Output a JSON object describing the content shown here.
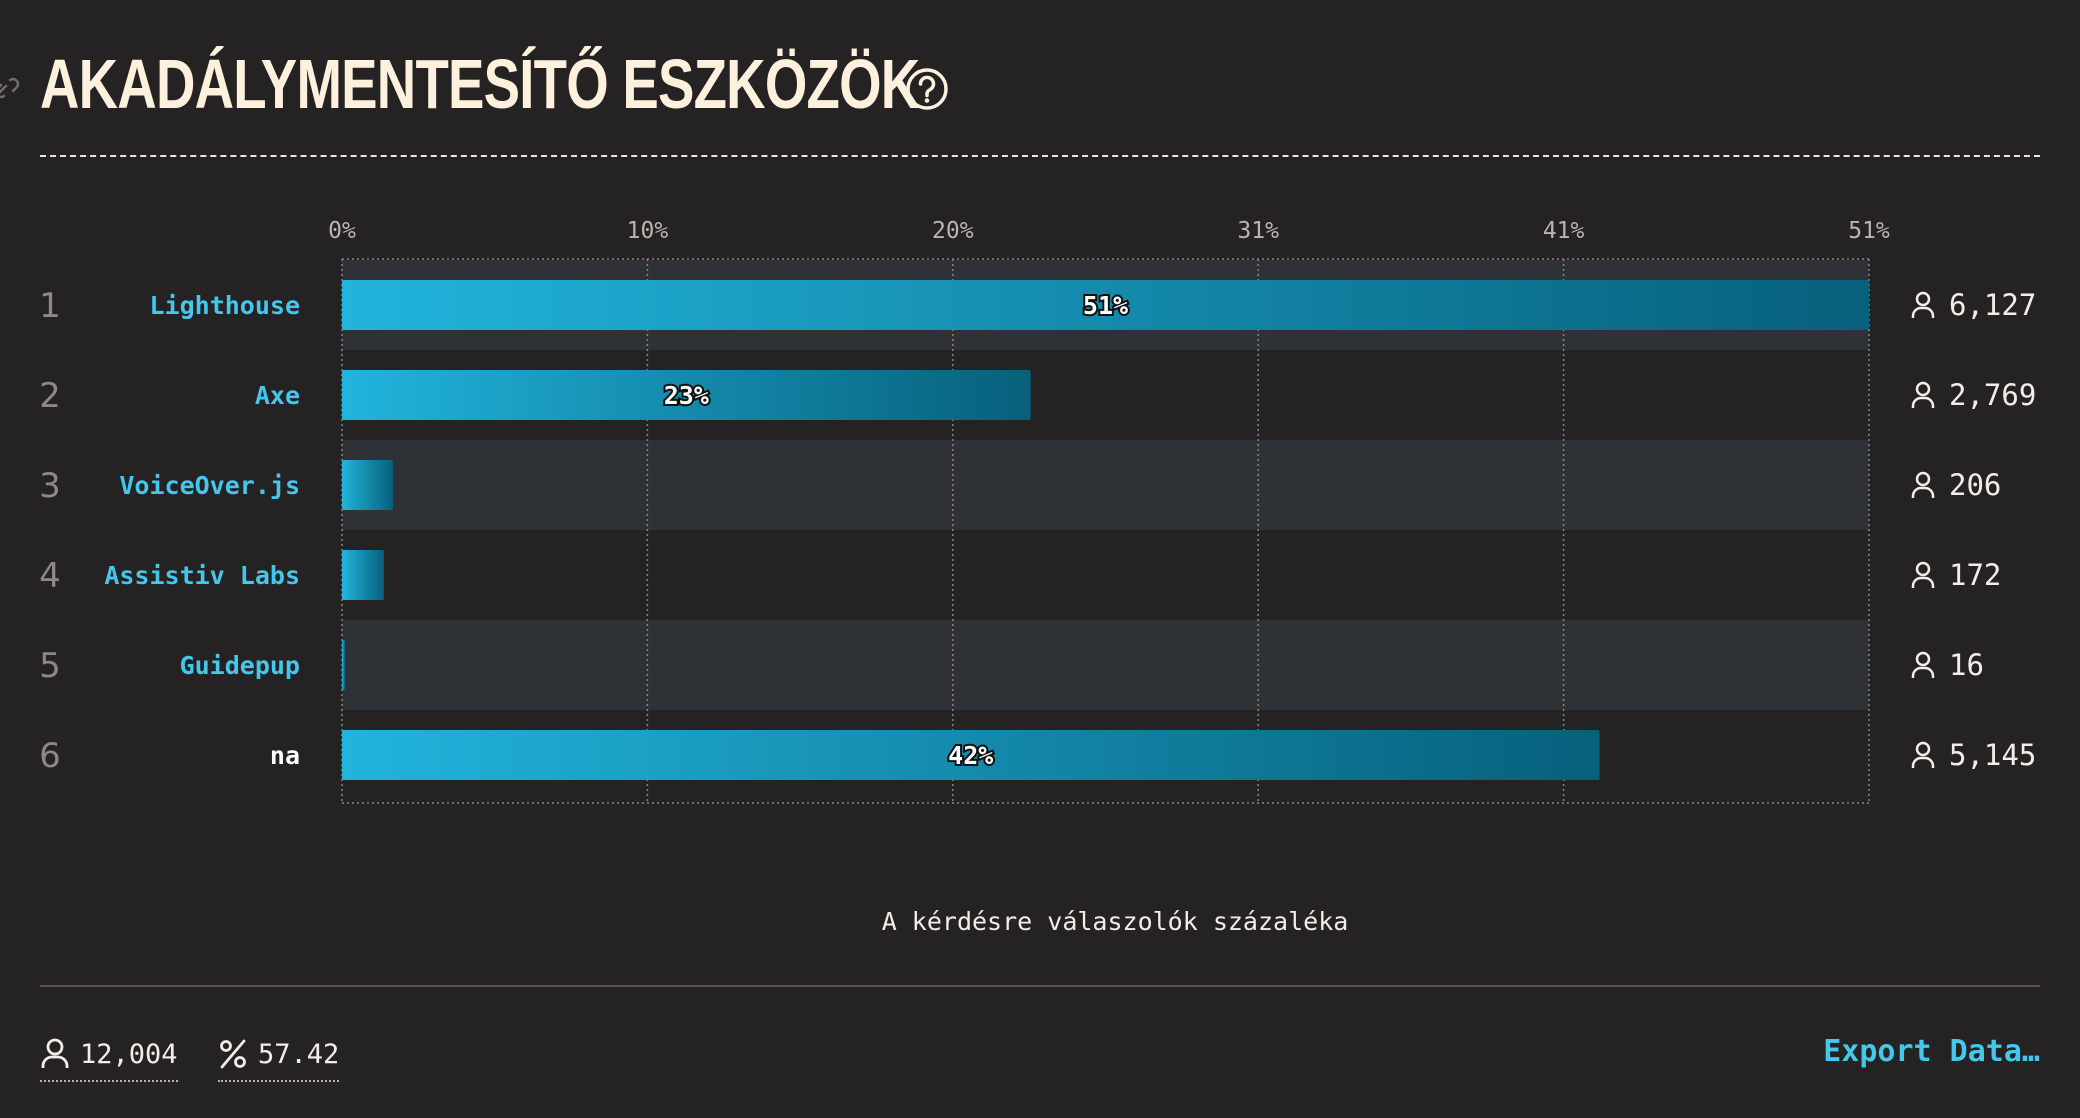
{
  "header": {
    "title": "AKADÁLYMENTESÍTŐ ESZKÖZÖK"
  },
  "chart_data": {
    "type": "bar",
    "orientation": "horizontal",
    "categories": [
      "Lighthouse",
      "Axe",
      "VoiceOver.js",
      "Assistiv Labs",
      "Guidepup",
      "na"
    ],
    "ranks": [
      "1",
      "2",
      "3",
      "4",
      "5",
      "6"
    ],
    "values": [
      51,
      23,
      1.7,
      1.4,
      0.1,
      42
    ],
    "bar_labels": [
      "51%",
      "23%",
      "",
      "",
      "",
      "42%"
    ],
    "counts": [
      "6,127",
      "2,769",
      "206",
      "172",
      "16",
      "5,145"
    ],
    "x_ticks": [
      "0%",
      "10%",
      "20%",
      "31%",
      "41%",
      "51%"
    ],
    "xlim": [
      0,
      51
    ],
    "xlabel": "A kérdésre válaszolók százaléka",
    "grid": true,
    "colors": {
      "label_primary": "#43c7ea",
      "label_other": "#ffffff",
      "bar_start": "#22b4dc",
      "bar_end": "#07607c",
      "band_shade": "#2e3236"
    }
  },
  "footer": {
    "respondents": "12,004",
    "percent": "57.42",
    "export_label": "Export Data…"
  },
  "icons": {
    "help": "question-circle-icon",
    "link": "link-icon",
    "user": "user-icon",
    "percent": "percent-icon"
  }
}
